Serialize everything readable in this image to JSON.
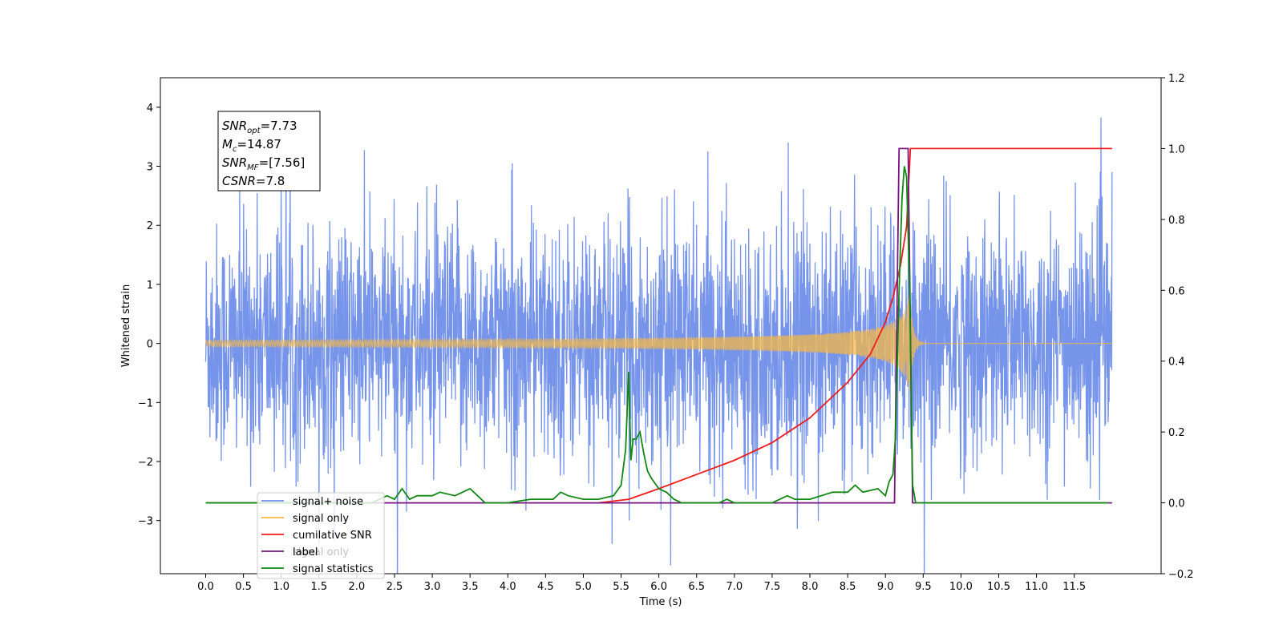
{
  "chart_data": {
    "type": "line",
    "title": "",
    "xlabel": "Time (s)",
    "ylabel": "Whitened strain",
    "y2label": "",
    "xlim": [
      -0.6,
      12.65
    ],
    "ylim": [
      -3.9,
      4.5
    ],
    "y2lim": [
      -0.2,
      1.2
    ],
    "x_ticks": [
      "0.0",
      "0.5",
      "1.0",
      "1.5",
      "2.0",
      "2.5",
      "3.0",
      "3.5",
      "4.0",
      "4.5",
      "5.0",
      "5.5",
      "6.0",
      "6.5",
      "7.0",
      "7.5",
      "8.0",
      "8.5",
      "9.0",
      "9.5",
      "10.0",
      "10.5",
      "11.0",
      "11.5"
    ],
    "y_ticks": [
      "−3",
      "−2",
      "−1",
      "0",
      "1",
      "2",
      "3",
      "4"
    ],
    "y2_ticks": [
      "−0.2",
      "0.0",
      "0.2",
      "0.4",
      "0.6",
      "0.8",
      "1.0",
      "1.2"
    ],
    "grid": false,
    "legend_position": "lower-left",
    "series": [
      {
        "name": "signal+ noise",
        "axis": "left",
        "color": "#6f8ee8",
        "description_kind": "noise",
        "amplitude_sigma": 1.0,
        "x_range": [
          0.0,
          12.0
        ]
      },
      {
        "name": "signal only",
        "axis": "left",
        "color": "#f5b847",
        "description_kind": "chirp",
        "merger_time": 9.33,
        "peak_amplitude": 0.95
      },
      {
        "name": "cumilative SNR",
        "axis": "right",
        "color": "#ee1c1c",
        "x": [
          5.2,
          5.6,
          6.0,
          6.5,
          7.0,
          7.5,
          8.0,
          8.5,
          8.8,
          9.0,
          9.1,
          9.2,
          9.28,
          9.33,
          9.5,
          10.0,
          11.0,
          12.0
        ],
        "y": [
          0.0,
          0.01,
          0.04,
          0.08,
          0.12,
          0.17,
          0.24,
          0.34,
          0.42,
          0.51,
          0.58,
          0.67,
          0.78,
          1.0,
          1.0,
          1.0,
          1.0,
          1.0
        ]
      },
      {
        "name": "label",
        "axis": "right",
        "color": "#7a1580",
        "x": [
          0.0,
          9.12,
          9.18,
          9.3,
          9.36,
          12.0
        ],
        "y": [
          0.0,
          0.0,
          1.0,
          1.0,
          0.0,
          0.0
        ]
      },
      {
        "name": "signal statistics",
        "axis": "right",
        "color": "#118811",
        "x": [
          0.0,
          2.2,
          2.4,
          2.5,
          2.6,
          2.7,
          2.8,
          3.0,
          3.1,
          3.3,
          3.5,
          3.6,
          3.7,
          3.8,
          4.0,
          4.3,
          4.6,
          4.7,
          4.8,
          5.0,
          5.2,
          5.4,
          5.5,
          5.56,
          5.6,
          5.63,
          5.66,
          5.7,
          5.75,
          5.8,
          5.85,
          5.9,
          6.0,
          6.1,
          6.2,
          6.3,
          6.5,
          6.8,
          6.9,
          7.0,
          7.1,
          7.5,
          7.7,
          7.8,
          8.0,
          8.3,
          8.5,
          8.6,
          8.7,
          8.9,
          9.0,
          9.05,
          9.1,
          9.13,
          9.18,
          9.22,
          9.25,
          9.28,
          9.32,
          9.36,
          9.4,
          10.0,
          11.0,
          11.95
        ],
        "y": [
          0.0,
          0.0,
          0.02,
          0.01,
          0.04,
          0.01,
          0.02,
          0.02,
          0.03,
          0.02,
          0.04,
          0.02,
          0.0,
          0.0,
          0.0,
          0.01,
          0.01,
          0.03,
          0.02,
          0.01,
          0.01,
          0.02,
          0.05,
          0.15,
          0.37,
          0.12,
          0.18,
          0.18,
          0.2,
          0.14,
          0.09,
          0.07,
          0.04,
          0.03,
          0.01,
          0.0,
          0.0,
          0.0,
          0.01,
          0.0,
          0.0,
          0.0,
          0.02,
          0.01,
          0.01,
          0.03,
          0.03,
          0.05,
          0.03,
          0.04,
          0.02,
          0.06,
          0.08,
          0.18,
          0.6,
          0.86,
          0.95,
          0.92,
          0.6,
          0.05,
          0.0,
          0.0,
          0.0,
          0.0
        ]
      }
    ],
    "legend_extra": "signal only",
    "annotation": {
      "lines": [
        {
          "base": "SNR",
          "sub": "opt",
          "value": "=7.73"
        },
        {
          "base": "M",
          "sub": "c",
          "value": "=14.87"
        },
        {
          "base": "SNR",
          "sub": "MF",
          "value": "=[7.56]"
        },
        {
          "base": "CSNR",
          "sub": "",
          "value": "=7.8"
        }
      ]
    }
  }
}
